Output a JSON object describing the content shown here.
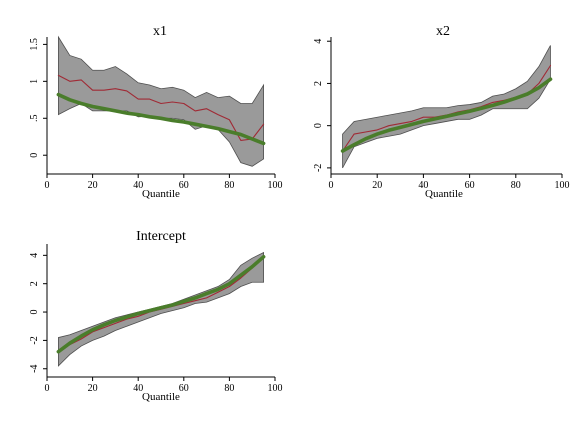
{
  "colors": {
    "band": "#9a9a9a",
    "band_edge": "#4f4f4f",
    "quantile_line": "#a02a35",
    "ols_line": "#4a7d2b",
    "axis": "#000000"
  },
  "chart_data": [
    {
      "type": "line",
      "title": "x1",
      "xlabel": "Quantile",
      "ylabel": "",
      "xlim": [
        0,
        100
      ],
      "ylim": [
        -0.2,
        1.6
      ],
      "xticks": [
        "0",
        "20",
        "40",
        "60",
        "80",
        "100"
      ],
      "yticks": [
        "0",
        ".5",
        "1",
        "1.5"
      ],
      "ytick_values": [
        0,
        0.5,
        1,
        1.5
      ],
      "x": [
        5,
        10,
        15,
        20,
        25,
        30,
        35,
        40,
        45,
        50,
        55,
        60,
        65,
        70,
        75,
        80,
        85,
        90,
        95
      ],
      "band_upper": [
        1.6,
        1.35,
        1.3,
        1.15,
        1.15,
        1.2,
        1.1,
        0.98,
        0.95,
        0.9,
        0.92,
        0.88,
        0.78,
        0.85,
        0.78,
        0.8,
        0.7,
        0.7,
        0.95
      ],
      "series": [
        {
          "values": [
            1.08,
            1.0,
            1.02,
            0.88,
            0.88,
            0.9,
            0.87,
            0.76,
            0.76,
            0.7,
            0.72,
            0.7,
            0.6,
            0.63,
            0.55,
            0.48,
            0.2,
            0.22,
            0.42
          ]
        },
        {
          "values": [
            0.82,
            0.75,
            0.7,
            0.66,
            0.63,
            0.6,
            0.57,
            0.55,
            0.52,
            0.5,
            0.47,
            0.45,
            0.42,
            0.39,
            0.36,
            0.32,
            0.28,
            0.22,
            0.16
          ]
        }
      ],
      "band_lower": [
        0.55,
        0.63,
        0.7,
        0.6,
        0.6,
        0.6,
        0.6,
        0.52,
        0.53,
        0.5,
        0.5,
        0.48,
        0.35,
        0.4,
        0.35,
        0.18,
        -0.1,
        -0.15,
        -0.05
      ]
    },
    {
      "type": "line",
      "title": "x2",
      "xlabel": "Quantile",
      "ylabel": "",
      "xlim": [
        0,
        100
      ],
      "ylim": [
        -2.1,
        4.2
      ],
      "xticks": [
        "0",
        "20",
        "40",
        "60",
        "80",
        "100"
      ],
      "yticks": [
        "-2",
        "0",
        "2",
        "4"
      ],
      "ytick_values": [
        -2,
        0,
        2,
        4
      ],
      "x": [
        5,
        10,
        15,
        20,
        25,
        30,
        35,
        40,
        45,
        50,
        55,
        60,
        65,
        70,
        75,
        80,
        85,
        90,
        95
      ],
      "band_upper": [
        -0.4,
        0.2,
        0.3,
        0.4,
        0.5,
        0.6,
        0.7,
        0.85,
        0.85,
        0.85,
        0.95,
        1.0,
        1.1,
        1.4,
        1.5,
        1.75,
        2.1,
        2.8,
        3.8
      ],
      "series": [
        {
          "values": [
            -1.2,
            -0.4,
            -0.3,
            -0.2,
            0.0,
            0.1,
            0.2,
            0.4,
            0.4,
            0.5,
            0.65,
            0.75,
            0.9,
            1.1,
            1.2,
            1.35,
            1.5,
            2.0,
            2.85
          ]
        },
        {
          "values": [
            -1.2,
            -0.9,
            -0.62,
            -0.4,
            -0.22,
            -0.08,
            0.06,
            0.2,
            0.32,
            0.44,
            0.56,
            0.68,
            0.82,
            0.96,
            1.12,
            1.3,
            1.5,
            1.8,
            2.2
          ]
        }
      ],
      "band_lower": [
        -2.0,
        -1.0,
        -0.8,
        -0.6,
        -0.5,
        -0.4,
        -0.2,
        0.0,
        0.1,
        0.2,
        0.3,
        0.3,
        0.5,
        0.8,
        0.8,
        0.8,
        0.8,
        1.3,
        2.2
      ]
    },
    {
      "type": "line",
      "title": "Intercept",
      "xlabel": "Quantile",
      "ylabel": "",
      "xlim": [
        0,
        100
      ],
      "ylim": [
        -4.3,
        4.8
      ],
      "xticks": [
        "0",
        "20",
        "40",
        "60",
        "80",
        "100"
      ],
      "yticks": [
        "-4",
        "-2",
        "0",
        "2",
        "4"
      ],
      "ytick_values": [
        -4,
        -2,
        0,
        2,
        4
      ],
      "x": [
        5,
        10,
        15,
        20,
        25,
        30,
        35,
        40,
        45,
        50,
        55,
        60,
        65,
        70,
        75,
        80,
        85,
        90,
        95
      ],
      "band_upper": [
        -1.8,
        -1.6,
        -1.3,
        -1.0,
        -0.7,
        -0.4,
        -0.2,
        0.0,
        0.2,
        0.4,
        0.6,
        0.9,
        1.2,
        1.5,
        1.8,
        2.3,
        3.3,
        3.8,
        4.2
      ],
      "series": [
        {
          "values": [
            -2.8,
            -2.3,
            -1.9,
            -1.4,
            -1.1,
            -0.8,
            -0.5,
            -0.3,
            0.0,
            0.2,
            0.4,
            0.6,
            0.8,
            1.0,
            1.4,
            1.8,
            2.4,
            3.1,
            3.9
          ]
        },
        {
          "values": [
            -2.8,
            -2.2,
            -1.7,
            -1.25,
            -0.9,
            -0.6,
            -0.35,
            -0.1,
            0.1,
            0.3,
            0.5,
            0.75,
            1.0,
            1.3,
            1.6,
            2.0,
            2.6,
            3.2,
            3.9
          ]
        }
      ],
      "band_lower": [
        -3.8,
        -3.0,
        -2.4,
        -2.0,
        -1.7,
        -1.3,
        -1.0,
        -0.7,
        -0.4,
        -0.1,
        0.1,
        0.3,
        0.6,
        0.7,
        1.0,
        1.3,
        1.8,
        2.1,
        2.1
      ]
    }
  ]
}
